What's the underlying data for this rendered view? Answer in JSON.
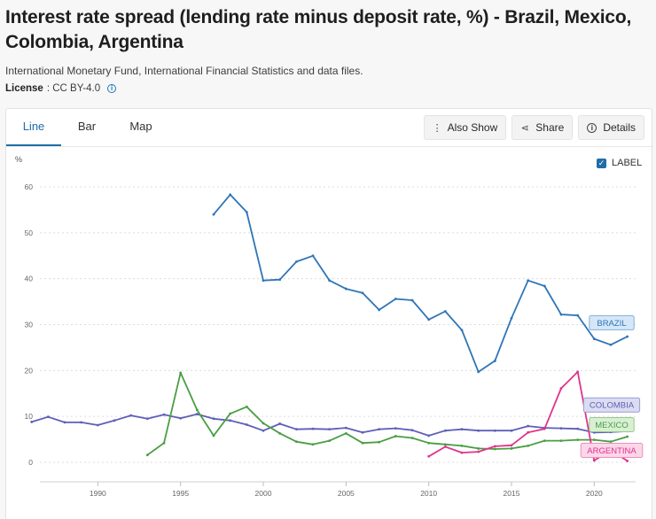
{
  "page": {
    "title": "Interest rate spread (lending rate minus deposit rate, %) - Brazil, Mexico, Colombia, Argentina",
    "source": "International Monetary Fund, International Financial Statistics and data files.",
    "license_label": "License",
    "license_value": ": CC BY-4.0",
    "info_icon": "i"
  },
  "tabs": [
    {
      "label": "Line",
      "active": true
    },
    {
      "label": "Bar",
      "active": false
    },
    {
      "label": "Map",
      "active": false
    }
  ],
  "actions": {
    "also_show": "Also Show",
    "share": "Share",
    "details": "Details",
    "also_show_icon": "⋮",
    "share_icon": "⋖",
    "details_icon": "i"
  },
  "label_toggle": {
    "text": "LABEL",
    "checked": true,
    "check_glyph": "✓"
  },
  "chart_data": {
    "type": "line",
    "ylabel": "%",
    "ylim": [
      0,
      60
    ],
    "yticks": [
      0,
      10,
      20,
      30,
      40,
      50,
      60
    ],
    "xlim": [
      1986.5,
      2022.5
    ],
    "xticks": [
      1990,
      1995,
      2000,
      2005,
      2010,
      2015,
      2020
    ],
    "grid": "horizontal dotted",
    "series": [
      {
        "name": "BRAZIL",
        "color": "#2e75b6",
        "points": [
          [
            1997,
            54
          ],
          [
            1998,
            58.3
          ],
          [
            1999,
            54.5
          ],
          [
            2000,
            39.6
          ],
          [
            2001,
            39.8
          ],
          [
            2002,
            43.7
          ],
          [
            2003,
            45
          ],
          [
            2004,
            39.6
          ],
          [
            2005,
            37.8
          ],
          [
            2006,
            36.9
          ],
          [
            2007,
            33.2
          ],
          [
            2008,
            35.6
          ],
          [
            2009,
            35.3
          ],
          [
            2010,
            31.1
          ],
          [
            2011,
            32.9
          ],
          [
            2012,
            28.8
          ],
          [
            2013,
            19.7
          ],
          [
            2014,
            22.1
          ],
          [
            2015,
            31.4
          ],
          [
            2016,
            39.6
          ],
          [
            2017,
            38.4
          ],
          [
            2018,
            32.2
          ],
          [
            2019,
            32
          ],
          [
            2020,
            26.9
          ],
          [
            2021,
            25.6
          ],
          [
            2022,
            27.4
          ]
        ]
      },
      {
        "name": "COLOMBIA",
        "color": "#5d5fb8",
        "points": [
          [
            1986,
            8.8
          ],
          [
            1987,
            9.9
          ],
          [
            1988,
            8.7
          ],
          [
            1989,
            8.7
          ],
          [
            1990,
            8.1
          ],
          [
            1991,
            9.1
          ],
          [
            1992,
            10.2
          ],
          [
            1993,
            9.5
          ],
          [
            1994,
            10.4
          ],
          [
            1995,
            9.6
          ],
          [
            1996,
            10.5
          ],
          [
            1997,
            9.5
          ],
          [
            1998,
            9.1
          ],
          [
            1999,
            8.2
          ],
          [
            2000,
            6.9
          ],
          [
            2001,
            8.4
          ],
          [
            2002,
            7.2
          ],
          [
            2003,
            7.3
          ],
          [
            2004,
            7.2
          ],
          [
            2005,
            7.5
          ],
          [
            2006,
            6.5
          ],
          [
            2007,
            7.2
          ],
          [
            2008,
            7.4
          ],
          [
            2009,
            7
          ],
          [
            2010,
            5.8
          ],
          [
            2011,
            6.9
          ],
          [
            2012,
            7.2
          ],
          [
            2013,
            6.9
          ],
          [
            2014,
            6.9
          ],
          [
            2015,
            6.9
          ],
          [
            2016,
            7.9
          ],
          [
            2017,
            7.5
          ],
          [
            2018,
            7.4
          ],
          [
            2019,
            7.3
          ],
          [
            2020,
            6.5
          ],
          [
            2021,
            6.6
          ],
          [
            2022,
            6.8
          ]
        ]
      },
      {
        "name": "MEXICO",
        "color": "#4a9e43",
        "points": [
          [
            1993,
            1.6
          ],
          [
            1994,
            4.2
          ],
          [
            1995,
            19.5
          ],
          [
            1996,
            11.4
          ],
          [
            1997,
            5.8
          ],
          [
            1998,
            10.6
          ],
          [
            1999,
            12.1
          ],
          [
            2000,
            8.5
          ],
          [
            2001,
            6.3
          ],
          [
            2002,
            4.5
          ],
          [
            2003,
            3.9
          ],
          [
            2004,
            4.7
          ],
          [
            2005,
            6.3
          ],
          [
            2006,
            4.2
          ],
          [
            2007,
            4.4
          ],
          [
            2008,
            5.7
          ],
          [
            2009,
            5.3
          ],
          [
            2010,
            4.2
          ],
          [
            2011,
            3.9
          ],
          [
            2012,
            3.6
          ],
          [
            2013,
            3
          ],
          [
            2014,
            2.9
          ],
          [
            2015,
            3
          ],
          [
            2016,
            3.6
          ],
          [
            2017,
            4.7
          ],
          [
            2018,
            4.7
          ],
          [
            2019,
            4.9
          ],
          [
            2020,
            4.9
          ],
          [
            2021,
            4.5
          ],
          [
            2022,
            5.6
          ]
        ]
      },
      {
        "name": "ARGENTINA",
        "color": "#e0338e",
        "points": [
          [
            2010,
            1.3
          ],
          [
            2011,
            3.4
          ],
          [
            2012,
            2.1
          ],
          [
            2013,
            2.3
          ],
          [
            2014,
            3.5
          ],
          [
            2015,
            3.7
          ],
          [
            2016,
            6.5
          ],
          [
            2017,
            7.3
          ],
          [
            2018,
            16.1
          ],
          [
            2019,
            19.7
          ],
          [
            2020,
            0.4
          ],
          [
            2021,
            2.6
          ],
          [
            2022,
            0.3
          ]
        ]
      }
    ],
    "end_labels": [
      {
        "series": "BRAZIL",
        "bg": "#d5e7f7",
        "border": "#7fb0dc",
        "text_color": "#2e75b6",
        "y": 30.4
      },
      {
        "series": "COLOMBIA",
        "bg": "#dcdcf1",
        "border": "#9a9bd6",
        "text_color": "#5d5fb8",
        "y": 12.5
      },
      {
        "series": "MEXICO",
        "bg": "#d9efd4",
        "border": "#94c98a",
        "text_color": "#4a9e43",
        "y": 8.2
      },
      {
        "series": "ARGENTINA",
        "bg": "#fbd7e9",
        "border": "#eb90c0",
        "text_color": "#e0338e",
        "y": 2.6
      }
    ]
  }
}
